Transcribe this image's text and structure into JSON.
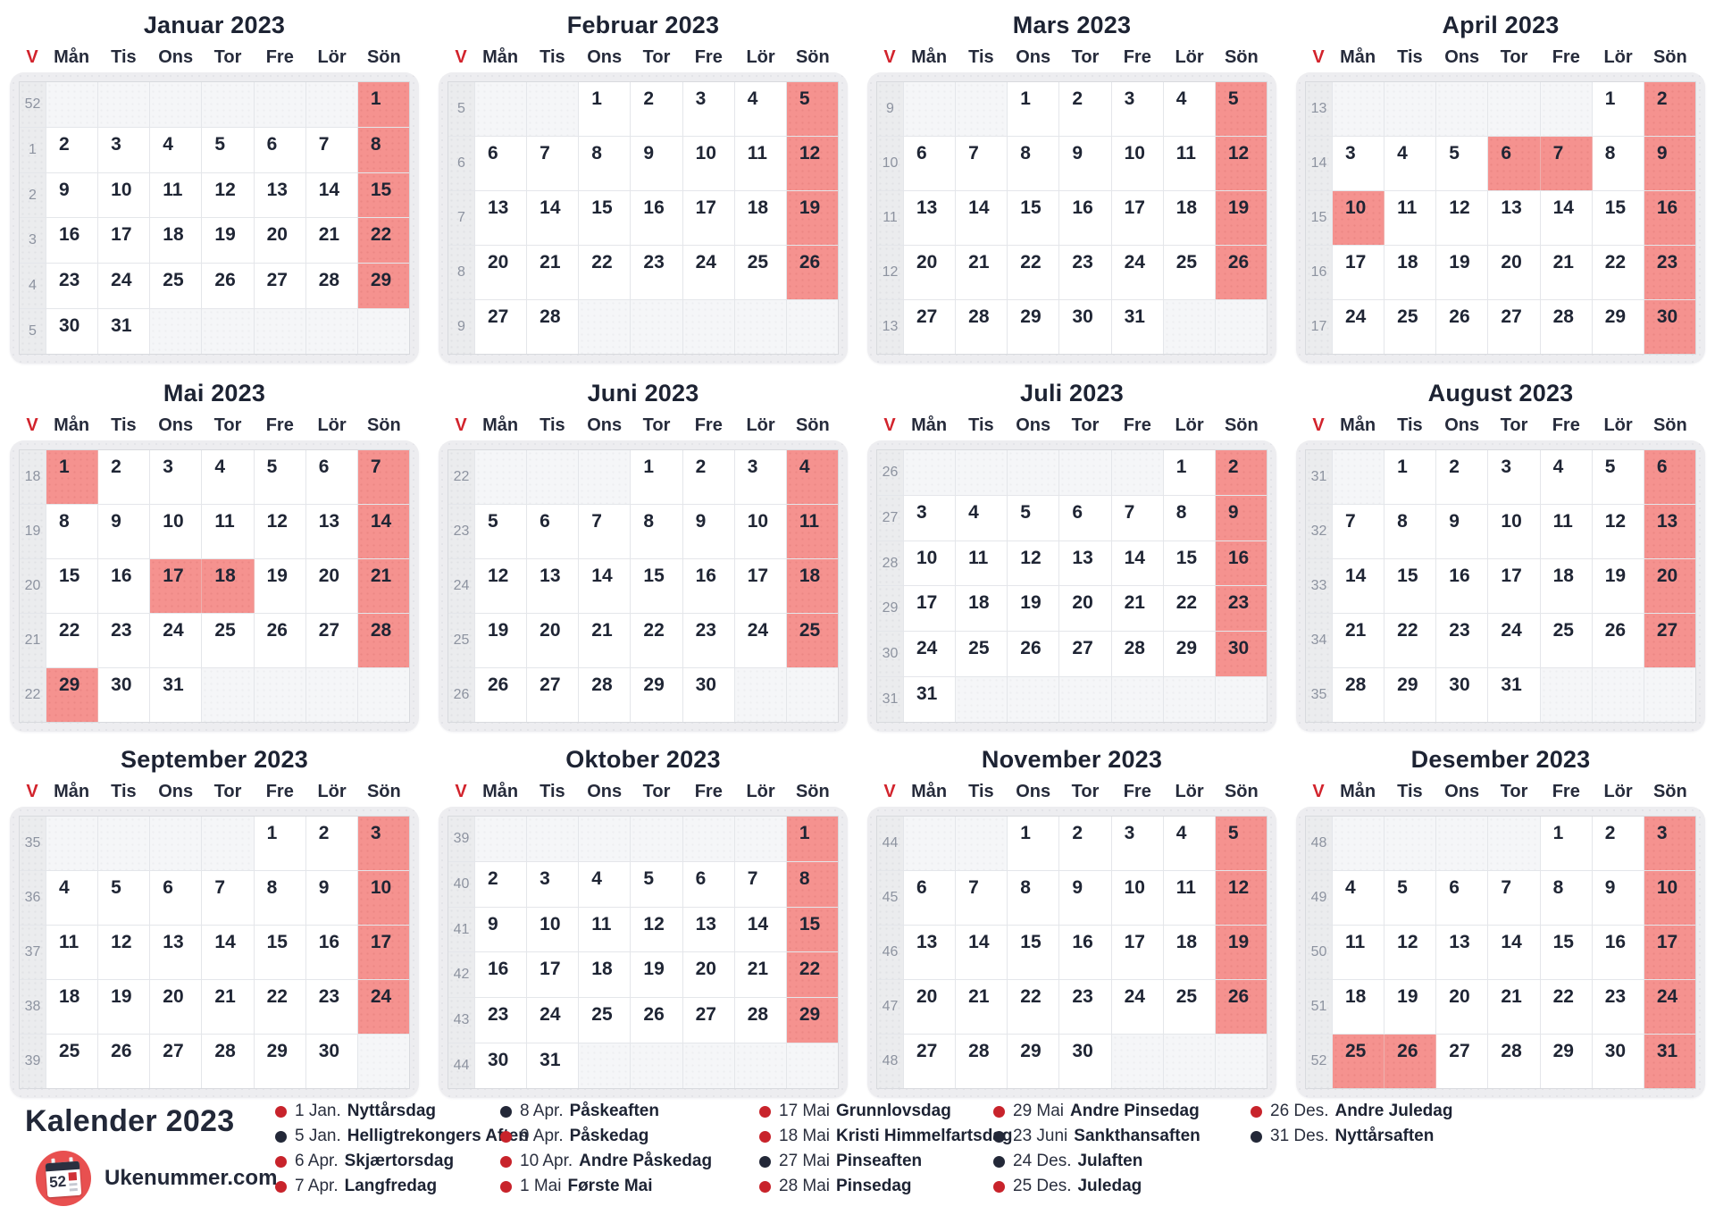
{
  "colors": {
    "highlight": "#f5928f",
    "week_col_bg": "#ebecee",
    "empty_bg": "#f5f6f8",
    "red_accent": "#d2232c",
    "legend_red": "#c8232b",
    "legend_dark": "#232838",
    "logo_circle": "#e85050"
  },
  "day_headers": [
    "V",
    "Mån",
    "Tis",
    "Ons",
    "Tor",
    "Fre",
    "Lör",
    "Sön"
  ],
  "months": [
    {
      "title": "Januar 2023",
      "red_days": [
        1,
        8,
        15,
        22,
        29
      ],
      "weeks": [
        {
          "num": 52,
          "days": [
            null,
            null,
            null,
            null,
            null,
            null,
            1
          ]
        },
        {
          "num": 1,
          "days": [
            2,
            3,
            4,
            5,
            6,
            7,
            8
          ]
        },
        {
          "num": 2,
          "days": [
            9,
            10,
            11,
            12,
            13,
            14,
            15
          ]
        },
        {
          "num": 3,
          "days": [
            16,
            17,
            18,
            19,
            20,
            21,
            22
          ]
        },
        {
          "num": 4,
          "days": [
            23,
            24,
            25,
            26,
            27,
            28,
            29
          ]
        },
        {
          "num": 5,
          "days": [
            30,
            31,
            null,
            null,
            null,
            null,
            null
          ]
        }
      ]
    },
    {
      "title": "Februar 2023",
      "red_days": [
        5,
        12,
        19,
        26
      ],
      "weeks": [
        {
          "num": 5,
          "days": [
            null,
            null,
            1,
            2,
            3,
            4,
            5
          ]
        },
        {
          "num": 6,
          "days": [
            6,
            7,
            8,
            9,
            10,
            11,
            12
          ]
        },
        {
          "num": 7,
          "days": [
            13,
            14,
            15,
            16,
            17,
            18,
            19
          ]
        },
        {
          "num": 8,
          "days": [
            20,
            21,
            22,
            23,
            24,
            25,
            26
          ]
        },
        {
          "num": 9,
          "days": [
            27,
            28,
            null,
            null,
            null,
            null,
            null
          ]
        }
      ]
    },
    {
      "title": "Mars 2023",
      "red_days": [
        5,
        12,
        19,
        26
      ],
      "weeks": [
        {
          "num": 9,
          "days": [
            null,
            null,
            1,
            2,
            3,
            4,
            5
          ]
        },
        {
          "num": 10,
          "days": [
            6,
            7,
            8,
            9,
            10,
            11,
            12
          ]
        },
        {
          "num": 11,
          "days": [
            13,
            14,
            15,
            16,
            17,
            18,
            19
          ]
        },
        {
          "num": 12,
          "days": [
            20,
            21,
            22,
            23,
            24,
            25,
            26
          ]
        },
        {
          "num": 13,
          "days": [
            27,
            28,
            29,
            30,
            31,
            null,
            null
          ]
        }
      ]
    },
    {
      "title": "April 2023",
      "red_days": [
        2,
        6,
        7,
        9,
        10,
        16,
        23,
        30
      ],
      "weeks": [
        {
          "num": 13,
          "days": [
            null,
            null,
            null,
            null,
            null,
            1,
            2
          ]
        },
        {
          "num": 14,
          "days": [
            3,
            4,
            5,
            6,
            7,
            8,
            9
          ]
        },
        {
          "num": 15,
          "days": [
            10,
            11,
            12,
            13,
            14,
            15,
            16
          ]
        },
        {
          "num": 16,
          "days": [
            17,
            18,
            19,
            20,
            21,
            22,
            23
          ]
        },
        {
          "num": 17,
          "days": [
            24,
            25,
            26,
            27,
            28,
            29,
            30
          ]
        }
      ]
    },
    {
      "title": "Mai 2023",
      "red_days": [
        1,
        7,
        14,
        17,
        18,
        21,
        28,
        29
      ],
      "weeks": [
        {
          "num": 18,
          "days": [
            1,
            2,
            3,
            4,
            5,
            6,
            7
          ]
        },
        {
          "num": 19,
          "days": [
            8,
            9,
            10,
            11,
            12,
            13,
            14
          ]
        },
        {
          "num": 20,
          "days": [
            15,
            16,
            17,
            18,
            19,
            20,
            21
          ]
        },
        {
          "num": 21,
          "days": [
            22,
            23,
            24,
            25,
            26,
            27,
            28
          ]
        },
        {
          "num": 22,
          "days": [
            29,
            30,
            31,
            null,
            null,
            null,
            null
          ]
        }
      ]
    },
    {
      "title": "Juni 2023",
      "red_days": [
        4,
        11,
        18,
        25
      ],
      "weeks": [
        {
          "num": 22,
          "days": [
            null,
            null,
            null,
            1,
            2,
            3,
            4
          ]
        },
        {
          "num": 23,
          "days": [
            5,
            6,
            7,
            8,
            9,
            10,
            11
          ]
        },
        {
          "num": 24,
          "days": [
            12,
            13,
            14,
            15,
            16,
            17,
            18
          ]
        },
        {
          "num": 25,
          "days": [
            19,
            20,
            21,
            22,
            23,
            24,
            25
          ]
        },
        {
          "num": 26,
          "days": [
            26,
            27,
            28,
            29,
            30,
            null,
            null
          ]
        }
      ]
    },
    {
      "title": "Juli 2023",
      "red_days": [
        2,
        9,
        16,
        23,
        30
      ],
      "weeks": [
        {
          "num": 26,
          "days": [
            null,
            null,
            null,
            null,
            null,
            1,
            2
          ]
        },
        {
          "num": 27,
          "days": [
            3,
            4,
            5,
            6,
            7,
            8,
            9
          ]
        },
        {
          "num": 28,
          "days": [
            10,
            11,
            12,
            13,
            14,
            15,
            16
          ]
        },
        {
          "num": 29,
          "days": [
            17,
            18,
            19,
            20,
            21,
            22,
            23
          ]
        },
        {
          "num": 30,
          "days": [
            24,
            25,
            26,
            27,
            28,
            29,
            30
          ]
        },
        {
          "num": 31,
          "days": [
            31,
            null,
            null,
            null,
            null,
            null,
            null
          ]
        }
      ]
    },
    {
      "title": "August 2023",
      "red_days": [
        6,
        13,
        20,
        27
      ],
      "weeks": [
        {
          "num": 31,
          "days": [
            null,
            1,
            2,
            3,
            4,
            5,
            6
          ]
        },
        {
          "num": 32,
          "days": [
            7,
            8,
            9,
            10,
            11,
            12,
            13
          ]
        },
        {
          "num": 33,
          "days": [
            14,
            15,
            16,
            17,
            18,
            19,
            20
          ]
        },
        {
          "num": 34,
          "days": [
            21,
            22,
            23,
            24,
            25,
            26,
            27
          ]
        },
        {
          "num": 35,
          "days": [
            28,
            29,
            30,
            31,
            null,
            null,
            null
          ]
        }
      ]
    },
    {
      "title": "September 2023",
      "red_days": [
        3,
        10,
        17,
        24
      ],
      "weeks": [
        {
          "num": 35,
          "days": [
            null,
            null,
            null,
            null,
            1,
            2,
            3
          ]
        },
        {
          "num": 36,
          "days": [
            4,
            5,
            6,
            7,
            8,
            9,
            10
          ]
        },
        {
          "num": 37,
          "days": [
            11,
            12,
            13,
            14,
            15,
            16,
            17
          ]
        },
        {
          "num": 38,
          "days": [
            18,
            19,
            20,
            21,
            22,
            23,
            24
          ]
        },
        {
          "num": 39,
          "days": [
            25,
            26,
            27,
            28,
            29,
            30,
            null
          ]
        }
      ]
    },
    {
      "title": "Oktober 2023",
      "red_days": [
        1,
        8,
        15,
        22,
        29
      ],
      "weeks": [
        {
          "num": 39,
          "days": [
            null,
            null,
            null,
            null,
            null,
            null,
            1
          ]
        },
        {
          "num": 40,
          "days": [
            2,
            3,
            4,
            5,
            6,
            7,
            8
          ]
        },
        {
          "num": 41,
          "days": [
            9,
            10,
            11,
            12,
            13,
            14,
            15
          ]
        },
        {
          "num": 42,
          "days": [
            16,
            17,
            18,
            19,
            20,
            21,
            22
          ]
        },
        {
          "num": 43,
          "days": [
            23,
            24,
            25,
            26,
            27,
            28,
            29
          ]
        },
        {
          "num": 44,
          "days": [
            30,
            31,
            null,
            null,
            null,
            null,
            null
          ]
        }
      ]
    },
    {
      "title": "November 2023",
      "red_days": [
        5,
        12,
        19,
        26
      ],
      "weeks": [
        {
          "num": 44,
          "days": [
            null,
            null,
            1,
            2,
            3,
            4,
            5
          ]
        },
        {
          "num": 45,
          "days": [
            6,
            7,
            8,
            9,
            10,
            11,
            12
          ]
        },
        {
          "num": 46,
          "days": [
            13,
            14,
            15,
            16,
            17,
            18,
            19
          ]
        },
        {
          "num": 47,
          "days": [
            20,
            21,
            22,
            23,
            24,
            25,
            26
          ]
        },
        {
          "num": 48,
          "days": [
            27,
            28,
            29,
            30,
            null,
            null,
            null
          ]
        }
      ]
    },
    {
      "title": "Desember 2023",
      "red_days": [
        3,
        10,
        17,
        24,
        25,
        26,
        31
      ],
      "weeks": [
        {
          "num": 48,
          "days": [
            null,
            null,
            null,
            null,
            1,
            2,
            3
          ]
        },
        {
          "num": 49,
          "days": [
            4,
            5,
            6,
            7,
            8,
            9,
            10
          ]
        },
        {
          "num": 50,
          "days": [
            11,
            12,
            13,
            14,
            15,
            16,
            17
          ]
        },
        {
          "num": 51,
          "days": [
            18,
            19,
            20,
            21,
            22,
            23,
            24
          ]
        },
        {
          "num": 52,
          "days": [
            25,
            26,
            27,
            28,
            29,
            30,
            31
          ]
        }
      ]
    }
  ],
  "legend": {
    "column_positions": [
      308,
      560,
      850,
      1112,
      1400
    ],
    "columns": [
      [
        {
          "dot": "red",
          "date": "1 Jan.",
          "name": "Nyttårsdag"
        },
        {
          "dot": "dark",
          "date": "5 Jan.",
          "name": "Helligtrekongers Aften"
        },
        {
          "dot": "red",
          "date": "6 Apr.",
          "name": "Skjærtorsdag"
        },
        {
          "dot": "red",
          "date": "7 Apr.",
          "name": "Langfredag"
        }
      ],
      [
        {
          "dot": "dark",
          "date": "8 Apr.",
          "name": "Påskeaften"
        },
        {
          "dot": "red",
          "date": "9 Apr.",
          "name": "Påskedag"
        },
        {
          "dot": "red",
          "date": "10 Apr.",
          "name": "Andre Påskedag"
        },
        {
          "dot": "red",
          "date": "1 Mai",
          "name": "Første Mai"
        }
      ],
      [
        {
          "dot": "red",
          "date": "17 Mai",
          "name": "Grunnlovsdag"
        },
        {
          "dot": "red",
          "date": "18 Mai",
          "name": "Kristi Himmelfartsdag"
        },
        {
          "dot": "dark",
          "date": "27 Mai",
          "name": "Pinseaften"
        },
        {
          "dot": "red",
          "date": "28 Mai",
          "name": "Pinsedag"
        }
      ],
      [
        {
          "dot": "red",
          "date": "29 Mai",
          "name": "Andre Pinsedag"
        },
        {
          "dot": "dark",
          "date": "23 Juni",
          "name": "Sankthansaften"
        },
        {
          "dot": "dark",
          "date": "24 Des.",
          "name": "Julaften"
        },
        {
          "dot": "red",
          "date": "25 Des.",
          "name": "Juledag"
        }
      ],
      [
        {
          "dot": "red",
          "date": "26 Des.",
          "name": "Andre Juledag"
        },
        {
          "dot": "dark",
          "date": "31 Des.",
          "name": "Nyttårsaften"
        }
      ]
    ]
  },
  "footer": {
    "title": "Kalender 2023",
    "brand": "Ukenummer.com",
    "logo_week": "52"
  }
}
